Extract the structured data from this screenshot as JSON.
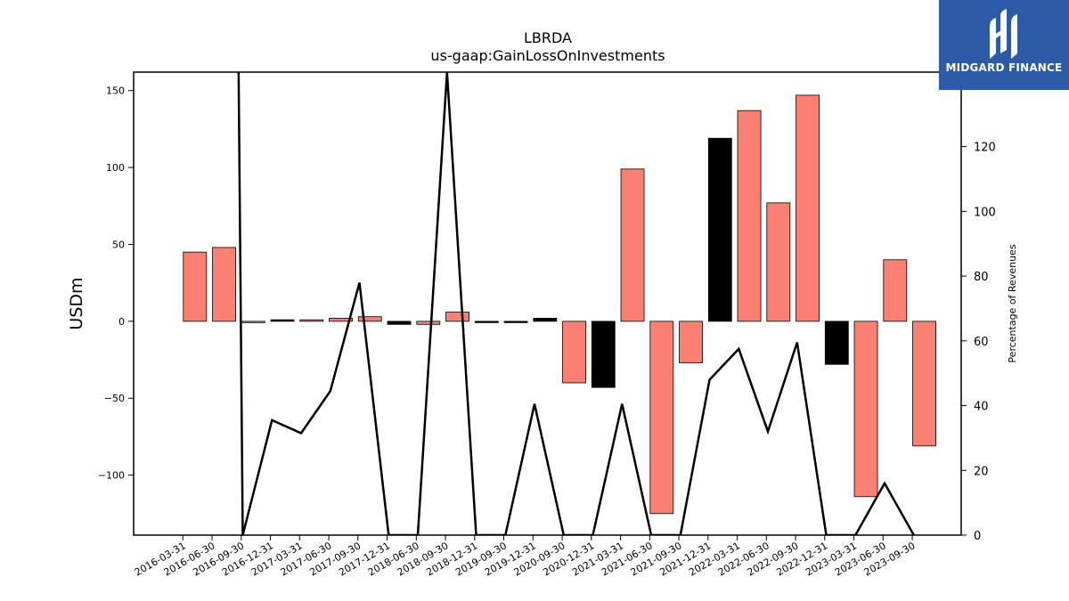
{
  "logo": {
    "text": "MIDGARD FINANCE",
    "mark_icon": "midgard-m-logo-icon",
    "background": "#2d5aa6"
  },
  "chart_data": {
    "type": "bar",
    "title": "LBRDA",
    "subtitle": "us-gaap:GainLossOnInvestments",
    "ylabel": "USDm",
    "y2label": "Percentage of Revenues",
    "ylim": [
      -139,
      162
    ],
    "y2lim": [
      0,
      143
    ],
    "yticks": [
      -100,
      -50,
      0,
      50,
      100,
      150
    ],
    "y2ticks": [
      0,
      20,
      40,
      60,
      80,
      100,
      120
    ],
    "categories": [
      "2016-03-31",
      "2016-06-30",
      "2016-09-30",
      "2016-12-31",
      "2017-03-31",
      "2017-06-30",
      "2017-09-30",
      "2017-12-31",
      "2018-06-30",
      "2018-09-30",
      "2018-12-31",
      "2019-09-30",
      "2019-12-31",
      "2020-09-30",
      "2020-12-31",
      "2021-03-31",
      "2021-06-30",
      "2021-09-30",
      "2021-12-31",
      "2022-03-31",
      "2022-06-30",
      "2022-09-30",
      "2022-12-31",
      "2023-03-31",
      "2023-06-30",
      "2023-09-30"
    ],
    "series": [
      {
        "values": [
          45,
          48,
          0,
          1,
          1,
          2,
          3,
          -2,
          -2,
          6,
          0,
          0,
          2,
          -40,
          -43,
          99,
          -125,
          -27,
          119,
          137,
          77,
          147,
          -28,
          -114,
          40,
          -81
        ],
        "bar_colors": [
          "salmon",
          "salmon",
          "salmon",
          "black",
          "salmon",
          "salmon",
          "salmon",
          "black",
          "salmon",
          "salmon",
          "black",
          "black",
          "black",
          "salmon",
          "black",
          "salmon",
          "salmon",
          "salmon",
          "black",
          "salmon",
          "salmon",
          "salmon",
          "black",
          "salmon",
          "salmon",
          "salmon"
        ]
      },
      {
        "type": "line",
        "axis": "right",
        "values": [
          null,
          null,
          0,
          35.5,
          31.5,
          44.5,
          78,
          0,
          0,
          143,
          0,
          0,
          40.5,
          0,
          0,
          40.5,
          0,
          0,
          48,
          57.5,
          32,
          59.5,
          0,
          0,
          16,
          0
        ]
      }
    ],
    "colors": {
      "salmon": "#fa8072",
      "black": "#000000",
      "line": "#000000"
    }
  }
}
